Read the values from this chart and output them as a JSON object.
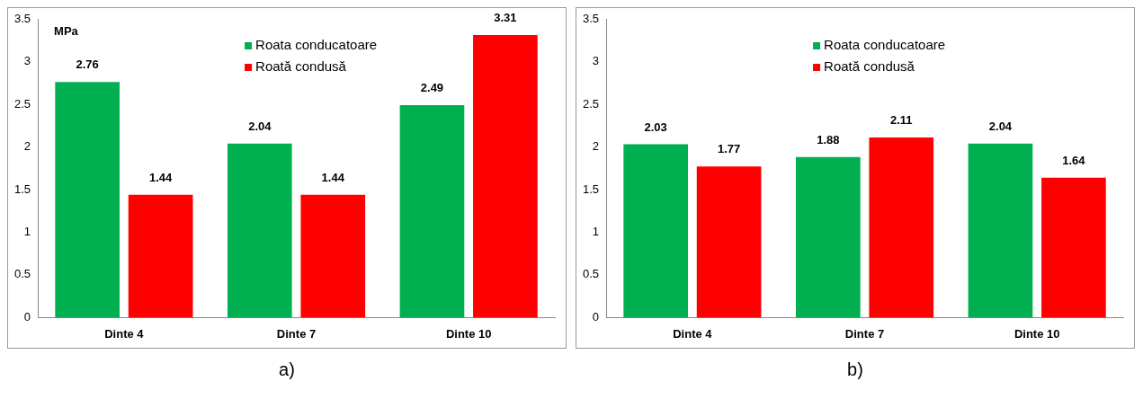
{
  "chart_data": [
    {
      "type": "bar",
      "ylabel": "MPa",
      "categories": [
        "Dinte 4",
        "Dinte 7",
        "Dinte 10"
      ],
      "series": [
        {
          "name": "Roata conducatoare",
          "color": "#00b050",
          "values": [
            2.76,
            2.04,
            2.49
          ]
        },
        {
          "name": "Roată condusă",
          "color": "#ff0000",
          "values": [
            1.44,
            1.44,
            3.31
          ]
        }
      ],
      "ylim": [
        0,
        3.5
      ],
      "yticks": [
        0,
        0.5,
        1,
        1.5,
        2,
        2.5,
        3,
        3.5
      ],
      "grid": false,
      "legend": "top",
      "data_labels": true,
      "annotations": [
        "a)"
      ]
    },
    {
      "type": "bar",
      "categories": [
        "Dinte 4",
        "Dinte 7",
        "Dinte 10"
      ],
      "series": [
        {
          "name": "Roata conducatoare",
          "color": "#00b050",
          "values": [
            2.03,
            1.88,
            2.04
          ]
        },
        {
          "name": "Roată condusă",
          "color": "#ff0000",
          "values": [
            1.77,
            2.11,
            1.64
          ]
        }
      ],
      "ylim": [
        0,
        3.5
      ],
      "yticks": [
        0,
        0.5,
        1,
        1.5,
        2,
        2.5,
        3,
        3.5
      ],
      "grid": false,
      "legend": "top",
      "data_labels": true,
      "annotations": [
        "b)"
      ]
    }
  ]
}
